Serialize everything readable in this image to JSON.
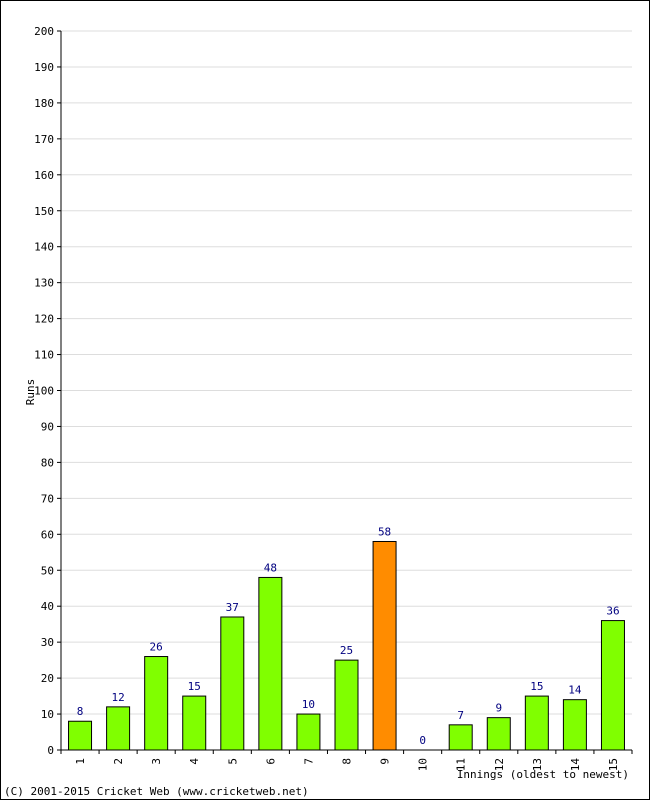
{
  "chart_data": {
    "type": "bar",
    "categories": [
      "1",
      "2",
      "3",
      "4",
      "5",
      "6",
      "7",
      "8",
      "9",
      "10",
      "11",
      "12",
      "13",
      "14",
      "15"
    ],
    "series": [
      {
        "values": [
          8,
          12,
          26,
          15,
          37,
          48,
          10,
          25,
          58,
          0,
          7,
          9,
          15,
          14,
          36
        ]
      }
    ],
    "highlight_index": 8,
    "colors": {
      "bar": "#80ff00",
      "highlight": "#ff8c00",
      "bar_edge": "#000000",
      "value_label": "#000080",
      "grid": "#dddddd"
    },
    "xlabel": "Innings (oldest to newest)",
    "ylabel": "Runs",
    "ylim": [
      0,
      200
    ],
    "yticks": [
      0,
      10,
      20,
      30,
      40,
      50,
      60,
      70,
      80,
      90,
      100,
      110,
      120,
      130,
      140,
      150,
      160,
      170,
      180,
      190,
      200
    ],
    "grid": true
  },
  "footer": {
    "copyright": "(C) 2001-2015 Cricket Web (www.cricketweb.net)"
  }
}
